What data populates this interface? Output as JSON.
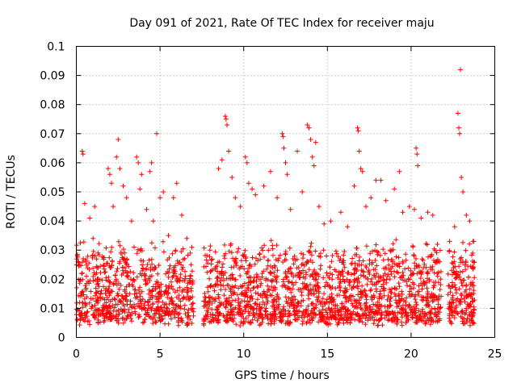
{
  "chart_data": {
    "type": "scatter",
    "title": "Day 091 of 2021, Rate Of TEC Index for receiver maju",
    "xlabel": "GPS time / hours",
    "ylabel": "ROTI / TECUs",
    "xlim": [
      0,
      25
    ],
    "ylim": [
      0,
      0.1
    ],
    "xticks": [
      0,
      5,
      10,
      15,
      20,
      25
    ],
    "xtick_labels": [
      "0",
      "5",
      "10",
      "15",
      "20",
      "25"
    ],
    "yticks": [
      0,
      0.01,
      0.02,
      0.03,
      0.04,
      0.05,
      0.06,
      0.07,
      0.08,
      0.09,
      0.1
    ],
    "ytick_labels": [
      "0",
      "0.01",
      "0.02",
      "0.03",
      "0.04",
      "0.05",
      "0.06",
      "0.07",
      "0.08",
      "0.09",
      "0.1"
    ],
    "grid": true,
    "marker": "+",
    "color": "#ff0000",
    "series": [
      {
        "name": "ROTI",
        "data_gaps_hours": [
          [
            7.0,
            7.6
          ],
          [
            21.8,
            22.2
          ]
        ],
        "data_extent_hours": [
          0,
          23.8
        ],
        "typical_range": [
          0.004,
          0.032
        ],
        "points": [
          [
            0.1,
            0.026
          ],
          [
            0.2,
            0.012
          ],
          [
            0.35,
            0.064
          ],
          [
            0.4,
            0.063
          ],
          [
            0.5,
            0.046
          ],
          [
            0.8,
            0.041
          ],
          [
            1.0,
            0.034
          ],
          [
            1.1,
            0.045
          ],
          [
            1.3,
            0.029
          ],
          [
            1.9,
            0.058
          ],
          [
            2.0,
            0.056
          ],
          [
            2.1,
            0.053
          ],
          [
            2.2,
            0.045
          ],
          [
            2.4,
            0.062
          ],
          [
            2.5,
            0.068
          ],
          [
            2.6,
            0.058
          ],
          [
            2.8,
            0.052
          ],
          [
            3.0,
            0.048
          ],
          [
            3.3,
            0.04
          ],
          [
            3.6,
            0.062
          ],
          [
            3.7,
            0.06
          ],
          [
            3.8,
            0.051
          ],
          [
            3.9,
            0.056
          ],
          [
            4.2,
            0.044
          ],
          [
            4.4,
            0.057
          ],
          [
            4.5,
            0.06
          ],
          [
            4.6,
            0.04
          ],
          [
            4.8,
            0.07
          ],
          [
            5.0,
            0.048
          ],
          [
            5.2,
            0.05
          ],
          [
            5.5,
            0.035
          ],
          [
            5.8,
            0.048
          ],
          [
            6.0,
            0.053
          ],
          [
            6.3,
            0.042
          ],
          [
            6.6,
            0.034
          ],
          [
            6.9,
            0.031
          ],
          [
            8.5,
            0.058
          ],
          [
            8.7,
            0.061
          ],
          [
            8.9,
            0.076
          ],
          [
            8.95,
            0.075
          ],
          [
            9.0,
            0.073
          ],
          [
            9.1,
            0.064
          ],
          [
            9.3,
            0.055
          ],
          [
            9.5,
            0.048
          ],
          [
            9.8,
            0.045
          ],
          [
            10.1,
            0.062
          ],
          [
            10.2,
            0.06
          ],
          [
            10.3,
            0.053
          ],
          [
            10.5,
            0.051
          ],
          [
            10.7,
            0.049
          ],
          [
            11.2,
            0.052
          ],
          [
            11.6,
            0.057
          ],
          [
            12.0,
            0.048
          ],
          [
            12.3,
            0.07
          ],
          [
            12.35,
            0.069
          ],
          [
            12.4,
            0.065
          ],
          [
            12.5,
            0.06
          ],
          [
            12.6,
            0.056
          ],
          [
            12.8,
            0.044
          ],
          [
            13.2,
            0.064
          ],
          [
            13.5,
            0.05
          ],
          [
            13.8,
            0.073
          ],
          [
            13.9,
            0.072
          ],
          [
            14.0,
            0.068
          ],
          [
            14.1,
            0.062
          ],
          [
            14.2,
            0.059
          ],
          [
            14.3,
            0.067
          ],
          [
            14.5,
            0.045
          ],
          [
            14.8,
            0.039
          ],
          [
            15.2,
            0.04
          ],
          [
            15.8,
            0.043
          ],
          [
            16.2,
            0.038
          ],
          [
            16.6,
            0.052
          ],
          [
            16.8,
            0.072
          ],
          [
            16.85,
            0.071
          ],
          [
            16.9,
            0.064
          ],
          [
            17.0,
            0.058
          ],
          [
            17.1,
            0.057
          ],
          [
            17.3,
            0.045
          ],
          [
            17.6,
            0.048
          ],
          [
            17.9,
            0.054
          ],
          [
            18.2,
            0.054
          ],
          [
            18.5,
            0.047
          ],
          [
            19.0,
            0.051
          ],
          [
            19.3,
            0.057
          ],
          [
            19.5,
            0.043
          ],
          [
            19.9,
            0.045
          ],
          [
            20.2,
            0.044
          ],
          [
            20.3,
            0.065
          ],
          [
            20.35,
            0.063
          ],
          [
            20.4,
            0.059
          ],
          [
            20.6,
            0.041
          ],
          [
            21.0,
            0.043
          ],
          [
            21.3,
            0.042
          ],
          [
            22.3,
            0.033
          ],
          [
            22.6,
            0.038
          ],
          [
            22.8,
            0.077
          ],
          [
            22.85,
            0.072
          ],
          [
            22.9,
            0.07
          ],
          [
            22.95,
            0.092
          ],
          [
            23.0,
            0.055
          ],
          [
            23.1,
            0.05
          ],
          [
            23.3,
            0.042
          ],
          [
            23.5,
            0.04
          ],
          [
            23.7,
            0.033
          ]
        ]
      }
    ]
  }
}
